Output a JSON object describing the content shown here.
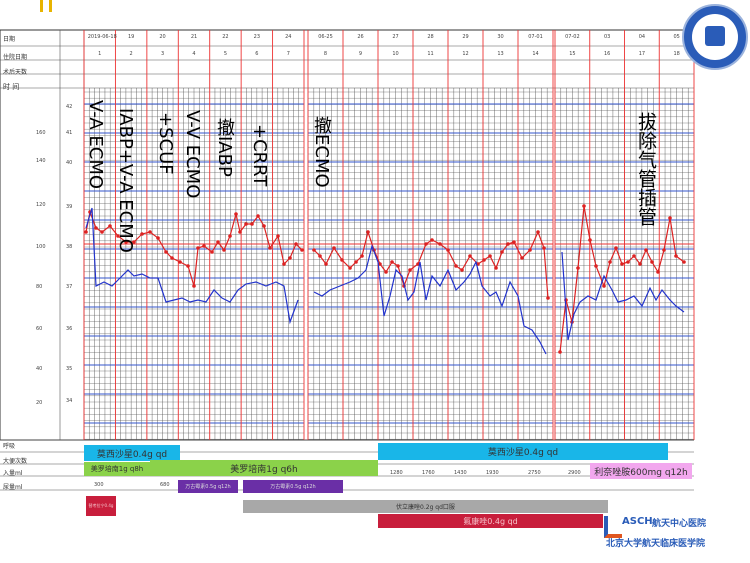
{
  "header": {
    "row_labels": [
      "日期",
      "住院日期",
      "术后天数",
      "时 间"
    ],
    "dates_p1": [
      "2019-06-18",
      "19",
      "20",
      "21",
      "22",
      "23",
      "24"
    ],
    "days_p1": [
      "1",
      "2",
      "3",
      "4",
      "5",
      "6",
      "7"
    ],
    "dates_p2": [
      "06-25",
      "26",
      "27",
      "28",
      "29",
      "30",
      "07-01"
    ],
    "days_p2": [
      "8",
      "9",
      "10",
      "11",
      "12",
      "13",
      "14"
    ],
    "dates_p3": [
      "07-02",
      "03",
      "04",
      "05"
    ],
    "days_p3": [
      "15",
      "16",
      "17",
      "18"
    ]
  },
  "axis_left": {
    "pulse_ticks": [
      "160",
      "140",
      "120",
      "100",
      "80",
      "60",
      "40",
      "20"
    ],
    "temp_ticks": [
      "42",
      "41",
      "40",
      "39",
      "38",
      "37",
      "36",
      "35",
      "34"
    ]
  },
  "annotations": {
    "va_ecmo": "V-A ECMO",
    "iabp_vaecmo": "IABP+V-A ECMO",
    "scuf": "+SCUF",
    "vv_ecmo": "V-V ECMO",
    "remove_iabp": "撤IABP",
    "crrt": "+CRRT",
    "remove_ecmo": "撤ECMO",
    "extubation": "拔除气管插管"
  },
  "bottom": {
    "row_labels": [
      "呼吸",
      "大便次数",
      "入量ml",
      "尿量ml"
    ],
    "moxifloxacin_1": "莫西沙星0.4g qd",
    "meropenem_small": "美罗培南1g q8h",
    "meropenem_main": "美罗培南1g q6h",
    "moxifloxacin_2": "莫西沙星0.4g qd",
    "linezolid": "利奈唑胺600mg q12h",
    "voriconazole": "伏立康唑0.2g qd口服",
    "drug_purple1": "万古霉素0.5g q12h",
    "drug_purple2": "万古霉素0.5g q12h",
    "drug_red_small": "替考拉宁0.4g",
    "fluconazole": "氟康唑0.4g qd",
    "intake_values": [
      "300",
      "680",
      "1280",
      "1760",
      "1430",
      "1930",
      "2750",
      "2900"
    ]
  },
  "logo": {
    "line1": "航天中心医院",
    "line2": "北京大学航天临床医学院",
    "brand": "ASCH"
  },
  "colors": {
    "blue": "#2233cc",
    "red": "#dd2222",
    "cyan": "#19b6e8",
    "green": "#8bd24a",
    "pink": "#f2a7ee",
    "purple": "#6a2fa6",
    "gray": "#a8a8a8",
    "darkred": "#c81e3c"
  }
}
